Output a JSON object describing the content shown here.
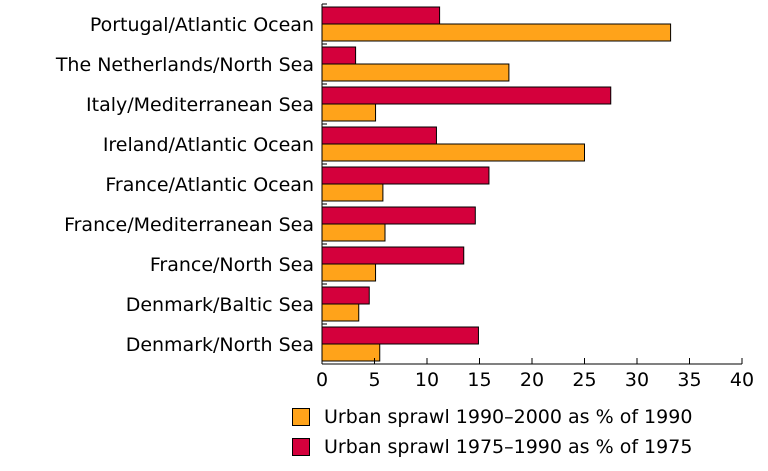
{
  "chart_data": {
    "type": "bar",
    "orientation": "horizontal",
    "categories": [
      "Portugal/Atlantic Ocean",
      "The Netherlands/North Sea",
      "Italy/Mediterranean Sea",
      "Ireland/Atlantic Ocean",
      "France/Atlantic Ocean",
      "France/Mediterranean Sea",
      "France/North Sea",
      "Denmark/Baltic Sea",
      "Denmark/North Sea"
    ],
    "series": [
      {
        "name": "Urban sprawl 1975–1990 as % of 1975",
        "color": "#d4003c",
        "values": [
          11.2,
          3.2,
          27.5,
          10.9,
          15.9,
          14.6,
          13.5,
          4.5,
          14.9
        ]
      },
      {
        "name": "Urban sprawl 1990–2000 as % of 1990",
        "color": "#ffa31a",
        "values": [
          33.2,
          17.8,
          5.1,
          25.0,
          5.8,
          6.0,
          5.1,
          3.5,
          5.5
        ]
      }
    ],
    "xlim": [
      0,
      40
    ],
    "xticks": [
      "0",
      "5",
      "10",
      "15",
      "20",
      "25",
      "30",
      "35",
      "40"
    ],
    "title": "",
    "xlabel": "",
    "ylabel": "",
    "grid": false,
    "legend_placement": "bottom"
  },
  "legend": {
    "items": [
      {
        "label": "Urban sprawl 1990–2000 as % of 1990",
        "color": "#ffa31a"
      },
      {
        "label": "Urban sprawl 1975–1990 as % of 1975",
        "color": "#d4003c"
      }
    ]
  }
}
